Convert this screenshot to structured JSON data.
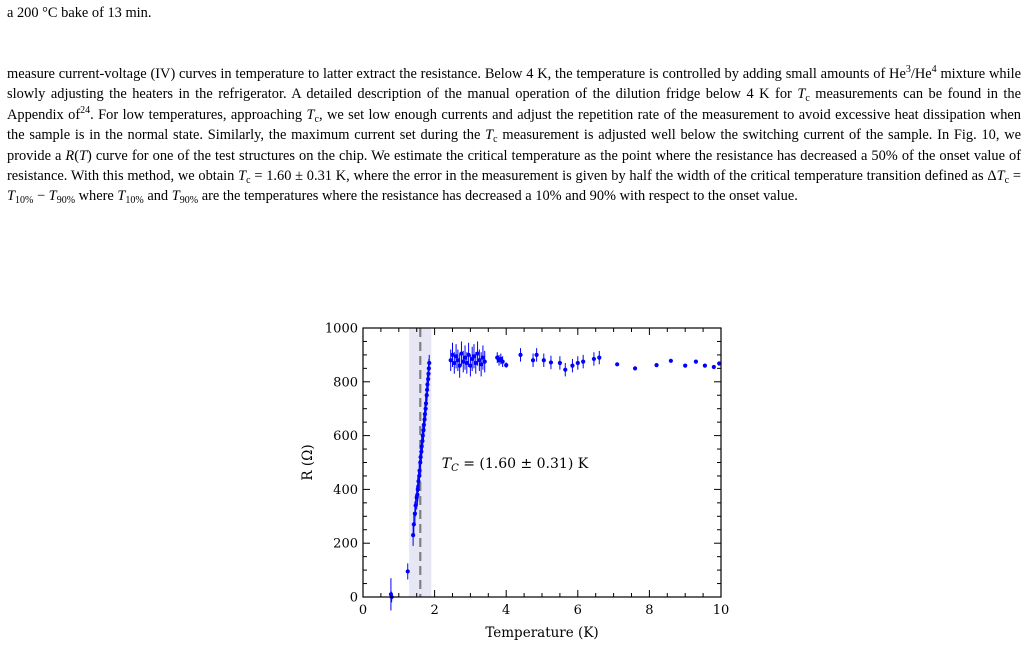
{
  "document": {
    "top_line": "a 200 °C bake of 13 min.",
    "paragraph": [
      {
        "t": "measure current-voltage (IV) curves in temperature to latter extract the resistance. Below 4 K, the temperature is controlled by adding small amounts of He"
      },
      {
        "sup": "3"
      },
      {
        "t": "/He"
      },
      {
        "sup": "4"
      },
      {
        "t": " mixture while slowly adjusting the heaters in the refrigerator. A detailed description of the manual operation of the dilution fridge below 4 K for "
      },
      {
        "i": "T"
      },
      {
        "sub": "c"
      },
      {
        "t": " measurements can be found in the Appendix of"
      },
      {
        "sup": "24"
      },
      {
        "t": ". For low temperatures, approaching "
      },
      {
        "i": "T"
      },
      {
        "sub": "c"
      },
      {
        "t": ", we set low enough currents and adjust the repetition rate of the measurement to avoid excessive heat dissipation when the sample is in the normal state. Similarly, the maximum current set during the "
      },
      {
        "i": "T"
      },
      {
        "sub": "c"
      },
      {
        "t": " measurement is adjusted well below the switching current of the sample. In Fig. 10, we provide a "
      },
      {
        "i": "R"
      },
      {
        "t": "("
      },
      {
        "i": "T"
      },
      {
        "t": ")"
      },
      {
        "t": " curve for one of the test structures on the chip. We estimate the critical temperature as the point where the resistance has decreased a 50% of the onset value of resistance. With this method, we obtain "
      },
      {
        "i": "T"
      },
      {
        "sub": "c"
      },
      {
        "t": " = 1.60 ± 0.31 K, where the error in the measurement is given by half the width of the critical temperature transition defined as Δ"
      },
      {
        "i": "T"
      },
      {
        "sub": "c"
      },
      {
        "t": " = "
      },
      {
        "i": "T"
      },
      {
        "sub": "10%"
      },
      {
        "t": " − "
      },
      {
        "i": "T"
      },
      {
        "sub": "90%"
      },
      {
        "t": " where "
      },
      {
        "i": "T"
      },
      {
        "sub": "10%"
      },
      {
        "t": " and "
      },
      {
        "i": "T"
      },
      {
        "sub": "90%"
      },
      {
        "t": " are the temperatures where the resistance has decreased a 10% and 90% with respect to the onset value."
      }
    ]
  },
  "chart_data": {
    "type": "scatter",
    "xlabel": "Temperature (K)",
    "ylabel": "R (Ω)",
    "xlim": [
      0,
      10
    ],
    "ylim": [
      0,
      1000
    ],
    "xticks": [
      0,
      2,
      4,
      6,
      8,
      10
    ],
    "yticks": [
      0,
      200,
      400,
      600,
      800,
      1000
    ],
    "grid": false,
    "point_color": "#0000ff",
    "annotation": {
      "text_prefix": "T",
      "text_sub": "C",
      "text_suffix": " = (1.60 ± 0.31) K",
      "x": 2.2,
      "y": 480
    },
    "tc": {
      "value": 1.6,
      "band": [
        1.29,
        1.91
      ],
      "line_color": "#808080",
      "band_color": "#e6e6f5"
    },
    "series": [
      {
        "x": [
          0.78,
          0.8,
          1.25,
          1.4,
          1.42,
          1.45,
          1.47,
          1.5,
          1.52,
          1.53,
          1.55,
          1.57,
          1.58,
          1.6,
          1.61,
          1.63,
          1.64,
          1.66,
          1.67,
          1.69,
          1.7,
          1.72,
          1.73,
          1.75,
          1.76,
          1.78,
          1.79,
          1.8,
          1.82,
          1.83,
          1.84,
          1.85,
          2.45,
          2.5,
          2.55,
          2.6,
          2.65,
          2.7,
          2.75,
          2.8,
          2.85,
          2.9,
          2.95,
          3.0,
          3.05,
          3.1,
          3.15,
          3.2,
          3.25,
          3.3,
          3.35,
          3.4,
          3.75,
          3.8,
          3.85,
          3.9,
          4.0,
          4.4,
          4.75,
          4.85,
          5.05,
          5.25,
          5.5,
          5.65,
          5.85,
          6.0,
          6.15,
          6.45,
          6.6,
          7.1,
          7.6,
          8.2,
          8.6,
          9.0,
          9.3,
          9.55,
          9.8,
          9.95
        ],
        "y": [
          10,
          0,
          95,
          230,
          270,
          310,
          340,
          370,
          380,
          400,
          430,
          450,
          470,
          500,
          520,
          540,
          560,
          580,
          600,
          620,
          640,
          660,
          680,
          700,
          720,
          750,
          770,
          790,
          810,
          830,
          850,
          870,
          880,
          900,
          870,
          895,
          880,
          860,
          905,
          875,
          890,
          870,
          900,
          860,
          885,
          895,
          870,
          905,
          880,
          865,
          890,
          875,
          890,
          880,
          885,
          875,
          862,
          900,
          880,
          900,
          880,
          872,
          870,
          845,
          860,
          870,
          875,
          885,
          890,
          865,
          850,
          862,
          878,
          860,
          875,
          860,
          855,
          868
        ],
        "yerr": [
          60,
          20,
          30,
          40,
          40,
          45,
          40,
          45,
          40,
          45,
          40,
          45,
          40,
          45,
          40,
          45,
          40,
          45,
          40,
          45,
          40,
          45,
          40,
          45,
          40,
          40,
          40,
          35,
          35,
          35,
          35,
          30,
          40,
          45,
          40,
          45,
          40,
          45,
          45,
          40,
          45,
          40,
          45,
          40,
          45,
          45,
          40,
          45,
          40,
          45,
          45,
          40,
          20,
          20,
          20,
          20,
          10,
          25,
          25,
          25,
          25,
          25,
          25,
          25,
          25,
          25,
          25,
          25,
          25,
          0,
          0,
          0,
          0,
          0,
          0,
          0,
          0,
          0
        ]
      }
    ]
  }
}
